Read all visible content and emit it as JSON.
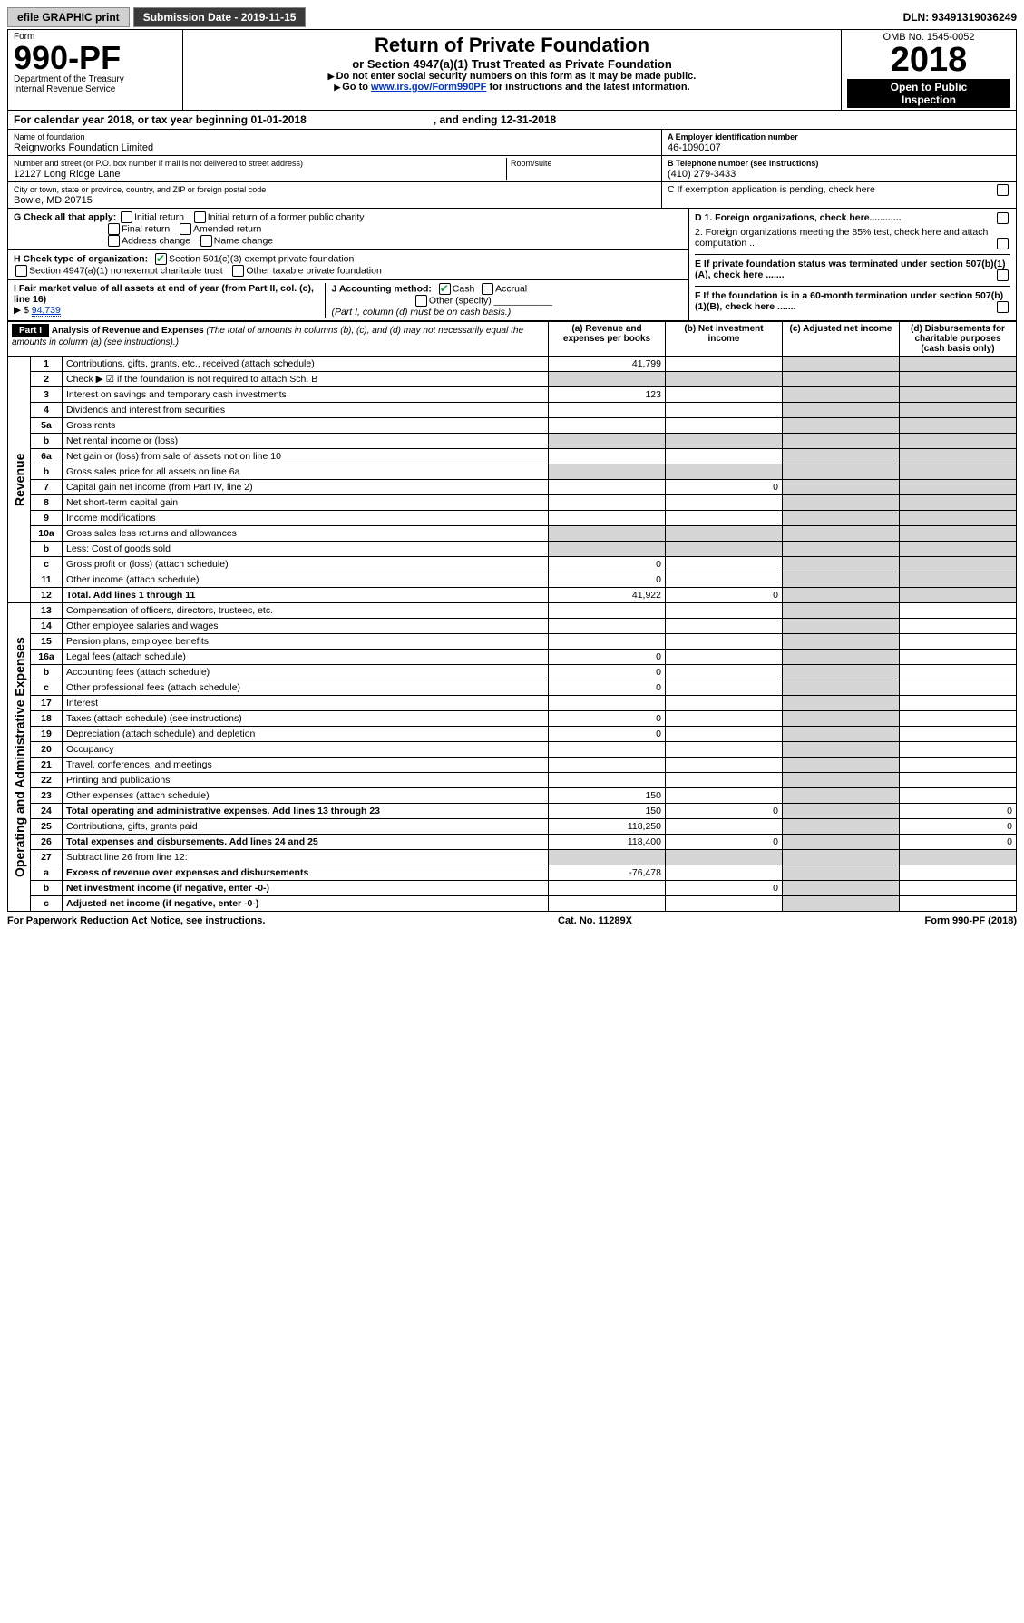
{
  "toolbar": {
    "efile": "efile GRAPHIC print",
    "submission_label": "Submission Date - 2019-11-15",
    "dln_label": "DLN: 93491319036249"
  },
  "header": {
    "form_word": "Form",
    "form_number": "990-PF",
    "dept": "Department of the Treasury",
    "irs": "Internal Revenue Service",
    "title": "Return of Private Foundation",
    "subtitle": "or Section 4947(a)(1) Trust Treated as Private Foundation",
    "note1": "Do not enter social security numbers on this form as it may be made public.",
    "note2_prefix": "Go to ",
    "note2_link": "www.irs.gov/Form990PF",
    "note2_suffix": " for instructions and the latest information.",
    "omb": "OMB No. 1545-0052",
    "year": "2018",
    "openpub1": "Open to Public",
    "openpub2": "Inspection"
  },
  "calyear": {
    "left": "For calendar year 2018, or tax year beginning 01-01-2018",
    "right": ", and ending 12-31-2018"
  },
  "id": {
    "name_label": "Name of foundation",
    "name_val": "Reignworks Foundation Limited",
    "addr_label": "Number and street (or P.O. box number if mail is not delivered to street address)",
    "addr_val": "12127 Long Ridge Lane",
    "room_label": "Room/suite",
    "city_label": "City or town, state or province, country, and ZIP or foreign postal code",
    "city_val": "Bowie, MD  20715",
    "ein_label": "A Employer identification number",
    "ein_val": "46-1090107",
    "tel_label": "B Telephone number (see instructions)",
    "tel_val": "(410) 279-3433",
    "c_label": "C  If exemption application is pending, check here"
  },
  "checks": {
    "g_label": "G Check all that apply:",
    "g_items": [
      "Initial return",
      "Initial return of a former public charity",
      "Final return",
      "Amended return",
      "Address change",
      "Name change"
    ],
    "h_label": "H Check type of organization:",
    "h1": "Section 501(c)(3) exempt private foundation",
    "h2": "Section 4947(a)(1) nonexempt charitable trust",
    "h3": "Other taxable private foundation",
    "i_label": "I Fair market value of all assets at end of year (from Part II, col. (c), line 16)",
    "i_amt_prefix": "▶ $ ",
    "i_amt": "94,739",
    "j_label": "J Accounting method:",
    "j_cash": "Cash",
    "j_accrual": "Accrual",
    "j_other": "Other (specify)",
    "j_note": "(Part I, column (d) must be on cash basis.)",
    "d1": "D 1. Foreign organizations, check here............",
    "d2": "2. Foreign organizations meeting the 85% test, check here and attach computation ...",
    "e": "E  If private foundation status was terminated under section 507(b)(1)(A), check here .......",
    "f": "F  If the foundation is in a 60-month termination under section 507(b)(1)(B), check here ......."
  },
  "part1": {
    "bar": "Part I",
    "title": "Analysis of Revenue and Expenses",
    "title_note": " (The total of amounts in columns (b), (c), and (d) may not necessarily equal the amounts in column (a) (see instructions).)",
    "cols": {
      "a": "(a) Revenue and expenses per books",
      "b": "(b) Net investment income",
      "c": "(c) Adjusted net income",
      "d": "(d) Disbursements for charitable purposes (cash basis only)"
    }
  },
  "revenue_label": "Revenue",
  "expense_label": "Operating and Administrative Expenses",
  "rows": [
    {
      "n": "1",
      "d": "Contributions, gifts, grants, etc., received (attach schedule)",
      "a": "41,799",
      "ds": [
        "",
        "",
        ""
      ]
    },
    {
      "n": "2",
      "d": "Check ▶ ☑ if the foundation is not required to attach Sch. B",
      "shade_all": true
    },
    {
      "n": "3",
      "d": "Interest on savings and temporary cash investments",
      "a": "123"
    },
    {
      "n": "4",
      "d": "Dividends and interest from securities"
    },
    {
      "n": "5a",
      "d": "Gross rents"
    },
    {
      "n": "b",
      "d": "Net rental income or (loss)",
      "shade_all": true
    },
    {
      "n": "6a",
      "d": "Net gain or (loss) from sale of assets not on line 10"
    },
    {
      "n": "b",
      "d": "Gross sales price for all assets on line 6a",
      "shade_all": true
    },
    {
      "n": "7",
      "d": "Capital gain net income (from Part IV, line 2)",
      "b": "0"
    },
    {
      "n": "8",
      "d": "Net short-term capital gain"
    },
    {
      "n": "9",
      "d": "Income modifications"
    },
    {
      "n": "10a",
      "d": "Gross sales less returns and allowances",
      "shade_all": true
    },
    {
      "n": "b",
      "d": "Less: Cost of goods sold",
      "shade_all": true
    },
    {
      "n": "c",
      "d": "Gross profit or (loss) (attach schedule)",
      "a": "0"
    },
    {
      "n": "11",
      "d": "Other income (attach schedule)",
      "a": "0"
    },
    {
      "n": "12",
      "d": "Total. Add lines 1 through 11",
      "a": "41,922",
      "b": "0",
      "bold": true
    }
  ],
  "rows2": [
    {
      "n": "13",
      "d": "Compensation of officers, directors, trustees, etc."
    },
    {
      "n": "14",
      "d": "Other employee salaries and wages"
    },
    {
      "n": "15",
      "d": "Pension plans, employee benefits"
    },
    {
      "n": "16a",
      "d": "Legal fees (attach schedule)",
      "a": "0"
    },
    {
      "n": "b",
      "d": "Accounting fees (attach schedule)",
      "a": "0"
    },
    {
      "n": "c",
      "d": "Other professional fees (attach schedule)",
      "a": "0"
    },
    {
      "n": "17",
      "d": "Interest"
    },
    {
      "n": "18",
      "d": "Taxes (attach schedule) (see instructions)",
      "a": "0"
    },
    {
      "n": "19",
      "d": "Depreciation (attach schedule) and depletion",
      "a": "0"
    },
    {
      "n": "20",
      "d": "Occupancy"
    },
    {
      "n": "21",
      "d": "Travel, conferences, and meetings"
    },
    {
      "n": "22",
      "d": "Printing and publications"
    },
    {
      "n": "23",
      "d": "Other expenses (attach schedule)",
      "a": "150"
    },
    {
      "n": "24",
      "d": "Total operating and administrative expenses. Add lines 13 through 23",
      "a": "150",
      "b": "0",
      "dcol": "0",
      "bold": true
    },
    {
      "n": "25",
      "d": "Contributions, gifts, grants paid",
      "a": "118,250",
      "dcol": "0"
    },
    {
      "n": "26",
      "d": "Total expenses and disbursements. Add lines 24 and 25",
      "a": "118,400",
      "b": "0",
      "dcol": "0",
      "bold": true
    },
    {
      "n": "27",
      "d": "Subtract line 26 from line 12:",
      "shade_rest": true
    },
    {
      "n": "a",
      "d": "Excess of revenue over expenses and disbursements",
      "a": "-76,478",
      "bold": true
    },
    {
      "n": "b",
      "d": "Net investment income (if negative, enter -0-)",
      "b": "0",
      "bold": true
    },
    {
      "n": "c",
      "d": "Adjusted net income (if negative, enter -0-)",
      "bold": true
    }
  ],
  "footer": {
    "left": "For Paperwork Reduction Act Notice, see instructions.",
    "mid": "Cat. No. 11289X",
    "right": "Form 990-PF (2018)"
  }
}
